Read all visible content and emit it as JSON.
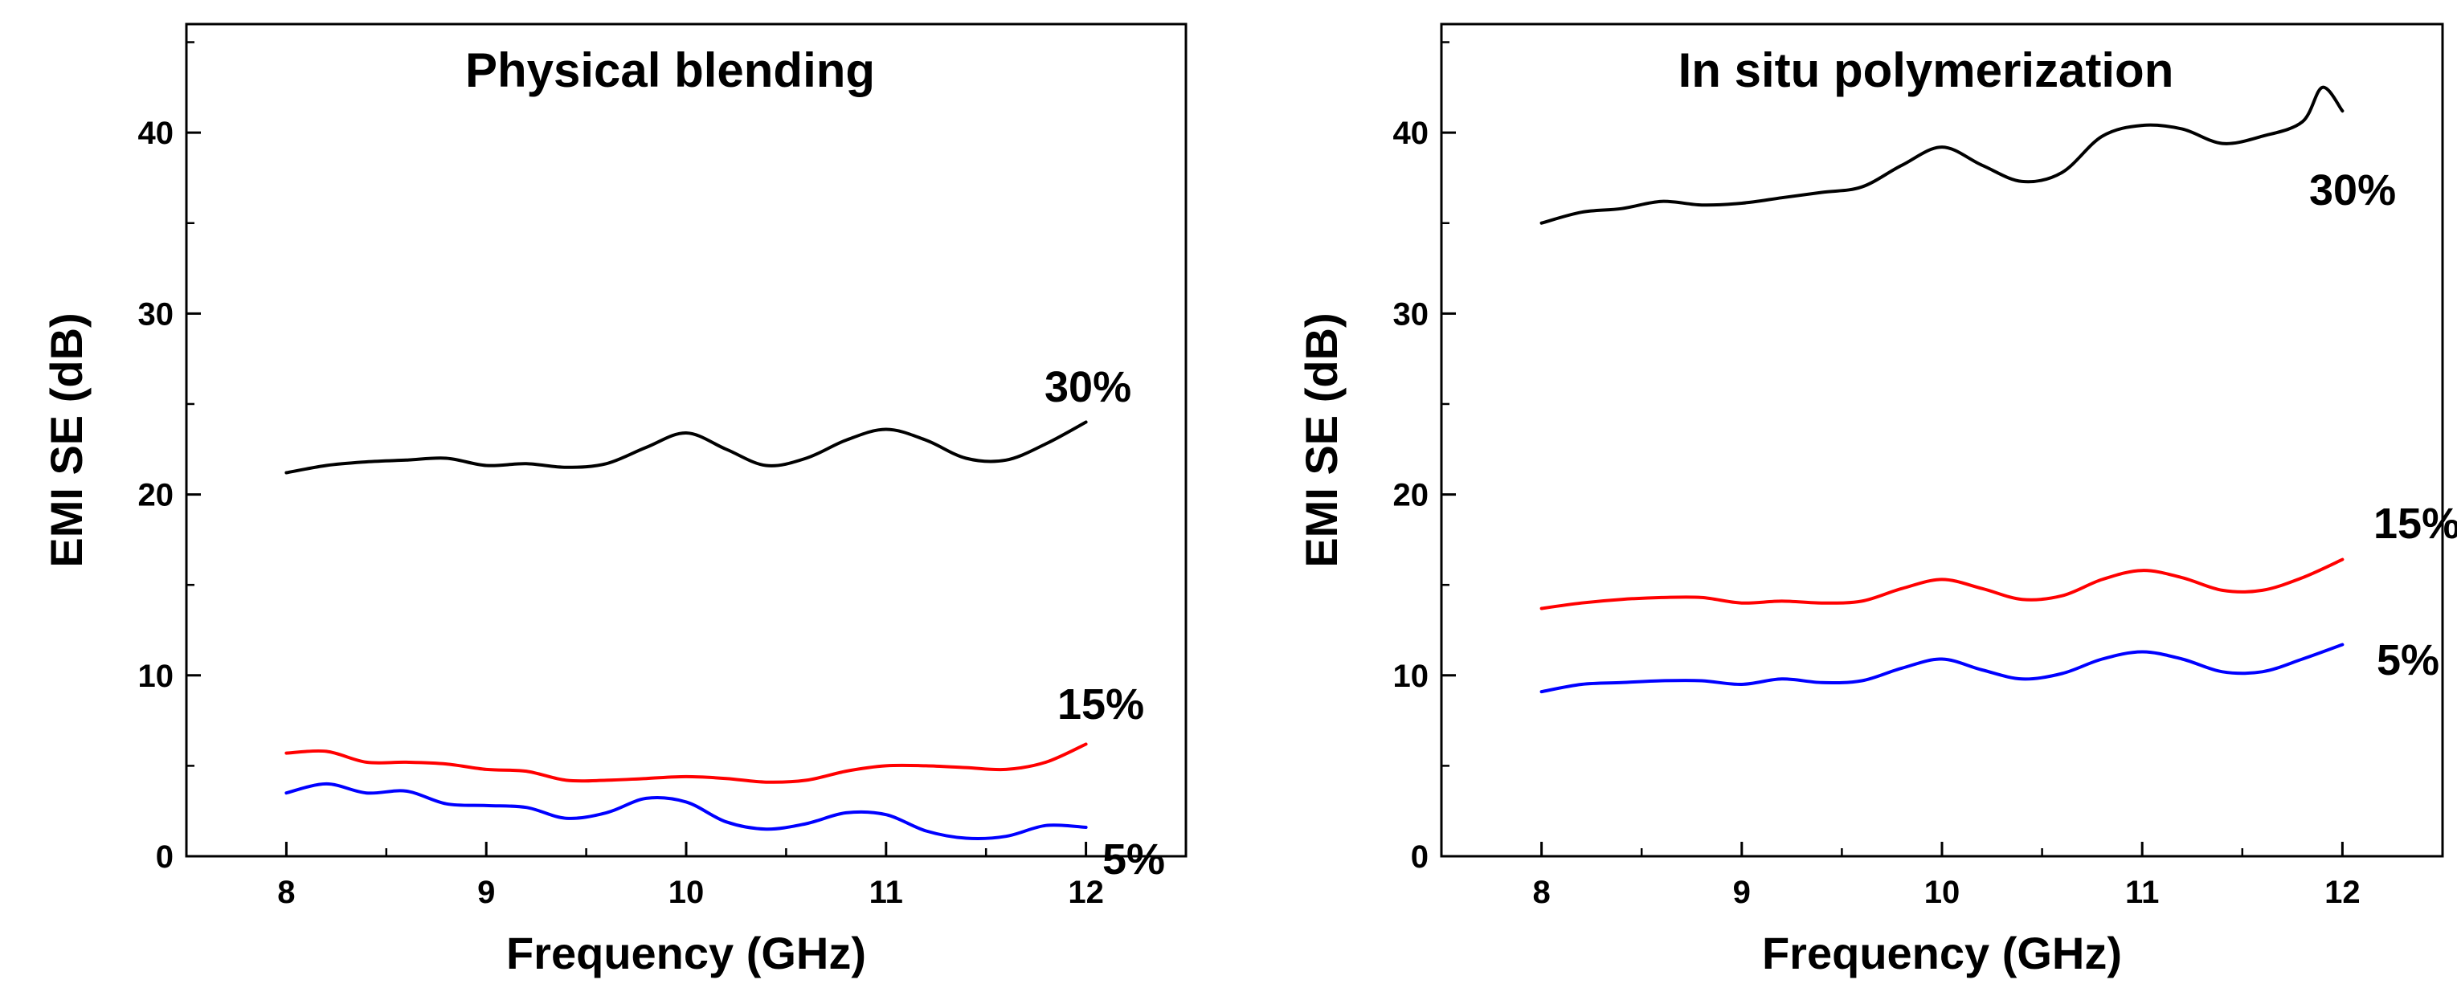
{
  "chart_data": [
    {
      "type": "line",
      "title": "Physical blending",
      "xlabel": "Frequency (GHz)",
      "ylabel": "EMI SE (dB)",
      "xlim": [
        7.5,
        12.5
      ],
      "ylim": [
        0,
        46
      ],
      "xticks": [
        8,
        9,
        10,
        11,
        12
      ],
      "yticks": [
        0,
        10,
        20,
        30,
        40
      ],
      "series": [
        {
          "name": "30%",
          "label": "30%",
          "color": "#000000",
          "x": [
            8.0,
            8.2,
            8.4,
            8.6,
            8.8,
            9.0,
            9.2,
            9.4,
            9.6,
            9.8,
            10.0,
            10.2,
            10.4,
            10.6,
            10.8,
            11.0,
            11.2,
            11.4,
            11.6,
            11.8,
            12.0
          ],
          "y": [
            21.2,
            21.6,
            21.8,
            21.9,
            22.0,
            21.6,
            21.7,
            21.5,
            21.7,
            22.6,
            23.4,
            22.5,
            21.6,
            22.0,
            23.0,
            23.6,
            23.0,
            22.0,
            21.9,
            22.8,
            24.0
          ]
        },
        {
          "name": "15%",
          "label": "15%",
          "color": "#ff0000",
          "x": [
            8.0,
            8.2,
            8.4,
            8.6,
            8.8,
            9.0,
            9.2,
            9.4,
            9.6,
            9.8,
            10.0,
            10.2,
            10.4,
            10.6,
            10.8,
            11.0,
            11.2,
            11.4,
            11.6,
            11.8,
            12.0
          ],
          "y": [
            5.7,
            5.8,
            5.2,
            5.2,
            5.1,
            4.8,
            4.7,
            4.2,
            4.2,
            4.3,
            4.4,
            4.3,
            4.1,
            4.2,
            4.7,
            5.0,
            5.0,
            4.9,
            4.8,
            5.2,
            6.2
          ]
        },
        {
          "name": "5%",
          "label": "5%",
          "color": "#0000ff",
          "x": [
            8.0,
            8.2,
            8.4,
            8.6,
            8.8,
            9.0,
            9.2,
            9.4,
            9.6,
            9.8,
            10.0,
            10.2,
            10.4,
            10.6,
            10.8,
            11.0,
            11.2,
            11.4,
            11.6,
            11.8,
            12.0
          ],
          "y": [
            3.5,
            4.0,
            3.5,
            3.6,
            2.9,
            2.8,
            2.7,
            2.1,
            2.4,
            3.2,
            3.0,
            1.9,
            1.5,
            1.8,
            2.4,
            2.3,
            1.4,
            1.0,
            1.1,
            1.7,
            1.6
          ]
        }
      ]
    },
    {
      "type": "line",
      "title": "In situ polymerization",
      "xlabel": "Frequency (GHz)",
      "ylabel": "EMI SE (dB)",
      "xlim": [
        7.5,
        12.5
      ],
      "ylim": [
        0,
        46
      ],
      "xticks": [
        8,
        9,
        10,
        11,
        12
      ],
      "yticks": [
        0,
        10,
        20,
        30,
        40
      ],
      "series": [
        {
          "name": "30%",
          "label": "30%",
          "color": "#000000",
          "x": [
            8.0,
            8.2,
            8.4,
            8.6,
            8.8,
            9.0,
            9.2,
            9.4,
            9.6,
            9.8,
            10.0,
            10.2,
            10.4,
            10.6,
            10.8,
            11.0,
            11.2,
            11.4,
            11.6,
            11.8,
            11.9,
            12.0
          ],
          "y": [
            35.0,
            35.6,
            35.8,
            36.2,
            36.0,
            36.1,
            36.4,
            36.7,
            37.0,
            38.2,
            39.2,
            38.2,
            37.3,
            37.8,
            39.8,
            40.4,
            40.2,
            39.4,
            39.8,
            40.6,
            42.5,
            41.2
          ]
        },
        {
          "name": "15%",
          "label": "15%",
          "color": "#ff0000",
          "x": [
            8.0,
            8.2,
            8.4,
            8.6,
            8.8,
            9.0,
            9.2,
            9.4,
            9.6,
            9.8,
            10.0,
            10.2,
            10.4,
            10.6,
            10.8,
            11.0,
            11.2,
            11.4,
            11.6,
            11.8,
            12.0
          ],
          "y": [
            13.7,
            14.0,
            14.2,
            14.3,
            14.3,
            14.0,
            14.1,
            14.0,
            14.1,
            14.8,
            15.3,
            14.8,
            14.2,
            14.4,
            15.3,
            15.8,
            15.4,
            14.7,
            14.7,
            15.4,
            16.4
          ]
        },
        {
          "name": "5%",
          "label": "5%",
          "color": "#0000ff",
          "x": [
            8.0,
            8.2,
            8.4,
            8.6,
            8.8,
            9.0,
            9.2,
            9.4,
            9.6,
            9.8,
            10.0,
            10.2,
            10.4,
            10.6,
            10.8,
            11.0,
            11.2,
            11.4,
            11.6,
            11.8,
            12.0
          ],
          "y": [
            9.1,
            9.5,
            9.6,
            9.7,
            9.7,
            9.5,
            9.8,
            9.6,
            9.7,
            10.4,
            10.9,
            10.3,
            9.8,
            10.1,
            10.9,
            11.3,
            10.9,
            10.2,
            10.2,
            10.9,
            11.7
          ]
        }
      ]
    }
  ]
}
